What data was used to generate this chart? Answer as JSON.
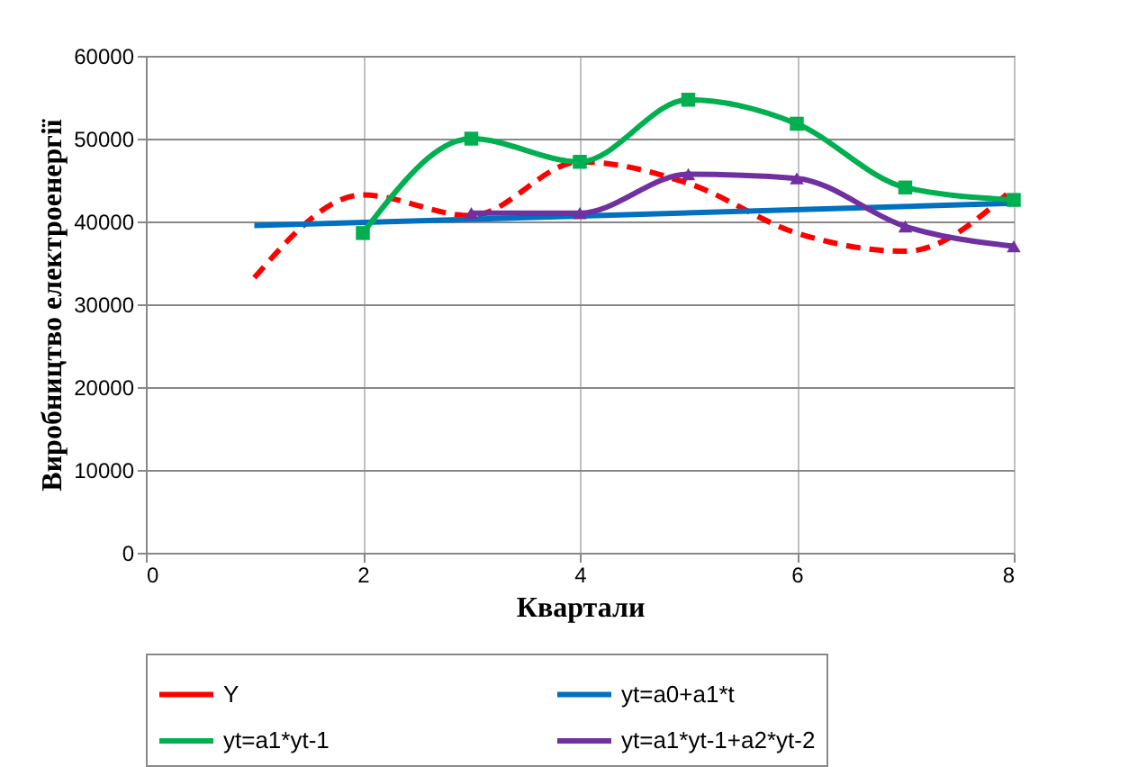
{
  "chart_data": {
    "type": "line",
    "xlabel": "Квартали",
    "ylabel": "Виробництво  електроенергії",
    "xlim": [
      0,
      8
    ],
    "xticks": [
      0,
      2,
      4,
      6,
      8
    ],
    "ylim": [
      0,
      60000
    ],
    "yticks": [
      0,
      10000,
      20000,
      30000,
      40000,
      50000,
      60000
    ],
    "grid": true,
    "legend": "bottom",
    "series": [
      {
        "name": "Y",
        "color": "#ff0000",
        "line_style": "dashed",
        "marker": "none",
        "x": [
          1,
          2,
          3,
          4,
          5,
          6,
          7,
          8
        ],
        "values": [
          33200,
          43200,
          40700,
          47200,
          44600,
          38600,
          36400,
          44000
        ]
      },
      {
        "name": "yt=a0+a1*t",
        "color": "#0070c0",
        "line_style": "solid",
        "marker": "none",
        "x": [
          1,
          8
        ],
        "values": [
          39500,
          42200
        ]
      },
      {
        "name": "yt=a1*yt-1",
        "color": "#00b050",
        "line_style": "solid",
        "marker": "square",
        "x": [
          2,
          3,
          4,
          5,
          6,
          7,
          8
        ],
        "values": [
          38600,
          50000,
          47200,
          54700,
          51800,
          44100,
          42600
        ]
      },
      {
        "name": "yt=a1*yt-1+a2*yt-2",
        "color": "#7030a0",
        "line_style": "solid",
        "marker": "triangle",
        "x": [
          3,
          4,
          5,
          6,
          7,
          8
        ],
        "values": [
          41000,
          41000,
          45700,
          45200,
          39400,
          37000
        ]
      }
    ]
  }
}
